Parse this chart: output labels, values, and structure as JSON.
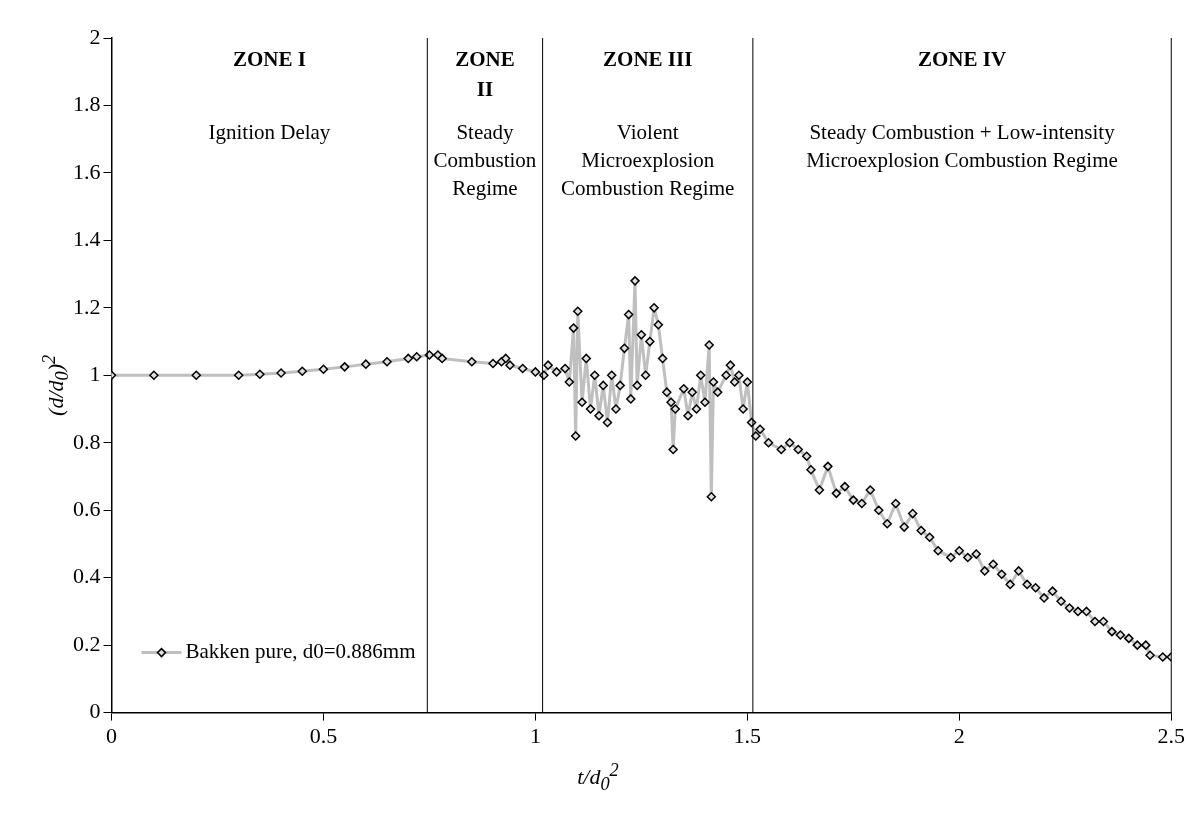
{
  "chart_data": {
    "type": "line",
    "xlabel": "t/d$_{0}$$^{2}$",
    "ylabel": "(d/d$_{0}$)$^{2}$",
    "xlim": [
      0,
      2.5
    ],
    "xticks": [
      0,
      0.5,
      1,
      1.5,
      2,
      2.5
    ],
    "ylim": [
      0,
      2
    ],
    "yticks": [
      0,
      0.2,
      0.4,
      0.6,
      0.8,
      1,
      1.2,
      1.4,
      1.6,
      1.8,
      2
    ],
    "grid": false,
    "legend": "bottom left",
    "marker": "diamond",
    "line_style": "solid",
    "ref_lines": [
      {
        "axis": "x",
        "value": 0.745
      },
      {
        "axis": "x",
        "value": 1.017
      },
      {
        "axis": "x",
        "value": 1.513
      },
      {
        "axis": "x",
        "value": 2.5
      }
    ],
    "annotations": [
      "ZONE I",
      "Ignition Delay",
      "ZONE II",
      "Steady Combustion Regime",
      "ZONE III",
      "Violent Microexplosion Combustion Regime",
      "ZONE IV",
      "Steady Combustion + Low-intensity Microexplosion Combustion Regime"
    ],
    "series": [
      {
        "name": "Bakken pure, d0=0.886mm",
        "color": "#000000",
        "x": [
          0,
          0.1,
          0.2,
          0.3,
          0.35,
          0.4,
          0.45,
          0.5,
          0.55,
          0.6,
          0.65,
          0.7,
          0.72,
          0.75,
          0.77,
          0.78,
          0.85,
          0.9,
          0.92,
          0.93,
          0.94,
          0.97,
          1.0,
          1.02,
          1.03,
          1.05,
          1.07,
          1.08,
          1.09,
          1.095,
          1.1,
          1.11,
          1.12,
          1.13,
          1.14,
          1.15,
          1.16,
          1.17,
          1.18,
          1.19,
          1.2,
          1.21,
          1.22,
          1.225,
          1.235,
          1.24,
          1.25,
          1.26,
          1.27,
          1.28,
          1.29,
          1.3,
          1.31,
          1.32,
          1.325,
          1.33,
          1.35,
          1.36,
          1.37,
          1.38,
          1.39,
          1.4,
          1.41,
          1.415,
          1.42,
          1.43,
          1.45,
          1.46,
          1.47,
          1.48,
          1.49,
          1.5,
          1.51,
          1.52,
          1.53,
          1.55,
          1.58,
          1.6,
          1.62,
          1.64,
          1.65,
          1.67,
          1.69,
          1.71,
          1.73,
          1.75,
          1.77,
          1.79,
          1.81,
          1.83,
          1.85,
          1.87,
          1.89,
          1.91,
          1.93,
          1.95,
          1.98,
          2.0,
          2.02,
          2.04,
          2.06,
          2.08,
          2.1,
          2.12,
          2.14,
          2.16,
          2.18,
          2.2,
          2.22,
          2.24,
          2.26,
          2.28,
          2.3,
          2.32,
          2.34,
          2.36,
          2.38,
          2.4,
          2.42,
          2.44,
          2.45,
          2.48,
          2.5
        ],
        "values": [
          1,
          1,
          1,
          1,
          1.003,
          1.007,
          1.012,
          1.018,
          1.025,
          1.033,
          1.04,
          1.05,
          1.055,
          1.06,
          1.06,
          1.05,
          1.04,
          1.035,
          1.04,
          1.05,
          1.03,
          1.02,
          1.01,
          1,
          1.03,
          1.01,
          1.02,
          0.98,
          1.14,
          0.82,
          1.19,
          0.92,
          1.05,
          0.9,
          1,
          0.88,
          0.97,
          0.86,
          1,
          0.9,
          0.97,
          1.08,
          1.18,
          0.93,
          1.28,
          0.97,
          1.12,
          1,
          1.1,
          1.2,
          1.15,
          1.05,
          0.95,
          0.92,
          0.78,
          0.9,
          0.96,
          0.88,
          0.95,
          0.9,
          1,
          0.92,
          1.09,
          0.64,
          0.98,
          0.95,
          1,
          1.03,
          0.98,
          1,
          0.9,
          0.98,
          0.86,
          0.82,
          0.84,
          0.8,
          0.78,
          0.8,
          0.78,
          0.76,
          0.72,
          0.66,
          0.73,
          0.65,
          0.67,
          0.63,
          0.62,
          0.66,
          0.6,
          0.56,
          0.62,
          0.55,
          0.59,
          0.54,
          0.52,
          0.48,
          0.46,
          0.48,
          0.46,
          0.47,
          0.42,
          0.44,
          0.41,
          0.38,
          0.42,
          0.38,
          0.37,
          0.34,
          0.36,
          0.33,
          0.31,
          0.3,
          0.3,
          0.27,
          0.27,
          0.24,
          0.23,
          0.22,
          0.2,
          0.2,
          0.17,
          0.165,
          0.165
        ]
      }
    ]
  }
}
